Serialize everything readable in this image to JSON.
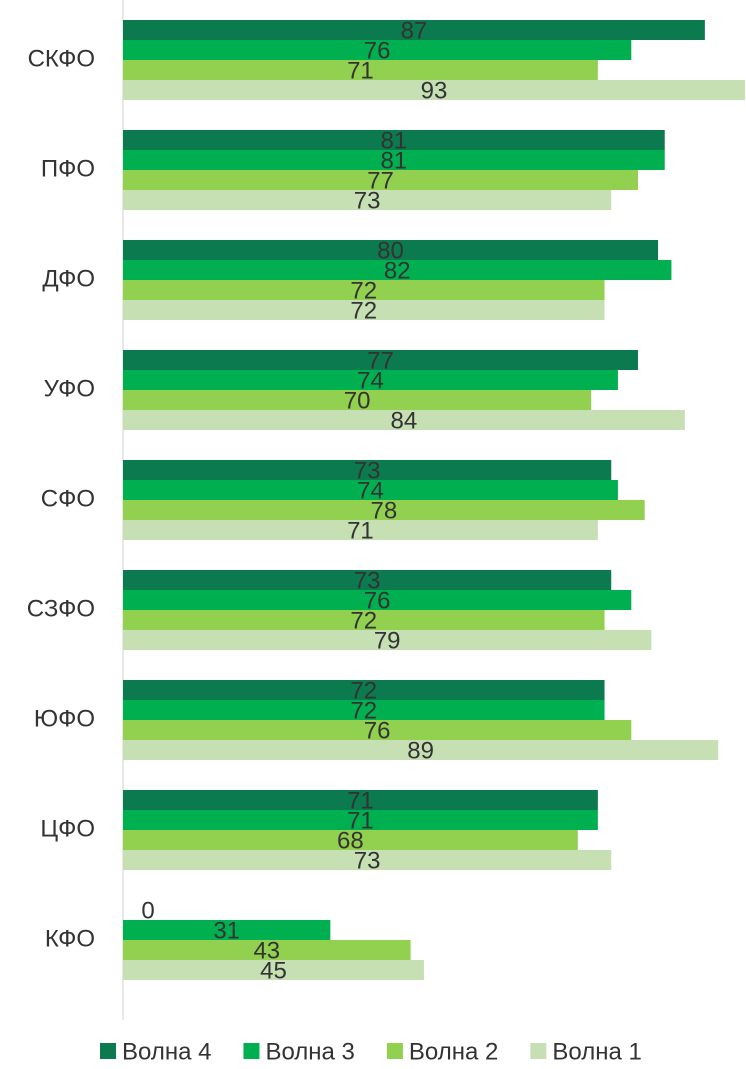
{
  "chart_data": {
    "type": "bar",
    "orientation": "horizontal",
    "categories": [
      "СКФО",
      "ПФО",
      "ДФО",
      "УФО",
      "СФО",
      "СЗФО",
      "ЮФО",
      "ЦФО",
      "КФО"
    ],
    "series": [
      {
        "name": "Волна 4",
        "color": "#0b7a4f",
        "values": [
          87,
          81,
          80,
          77,
          73,
          73,
          72,
          71,
          0
        ]
      },
      {
        "name": "Волна 3",
        "color": "#00b050",
        "values": [
          76,
          81,
          82,
          74,
          74,
          76,
          72,
          71,
          31
        ]
      },
      {
        "name": "Волна 2",
        "color": "#92d050",
        "values": [
          71,
          77,
          72,
          70,
          78,
          72,
          76,
          68,
          43
        ]
      },
      {
        "name": "Волна 1",
        "color": "#c6e0b4",
        "values": [
          93,
          73,
          72,
          84,
          71,
          79,
          89,
          73,
          45
        ]
      }
    ],
    "xlim": [
      0,
      93
    ],
    "legend": "bottom"
  }
}
